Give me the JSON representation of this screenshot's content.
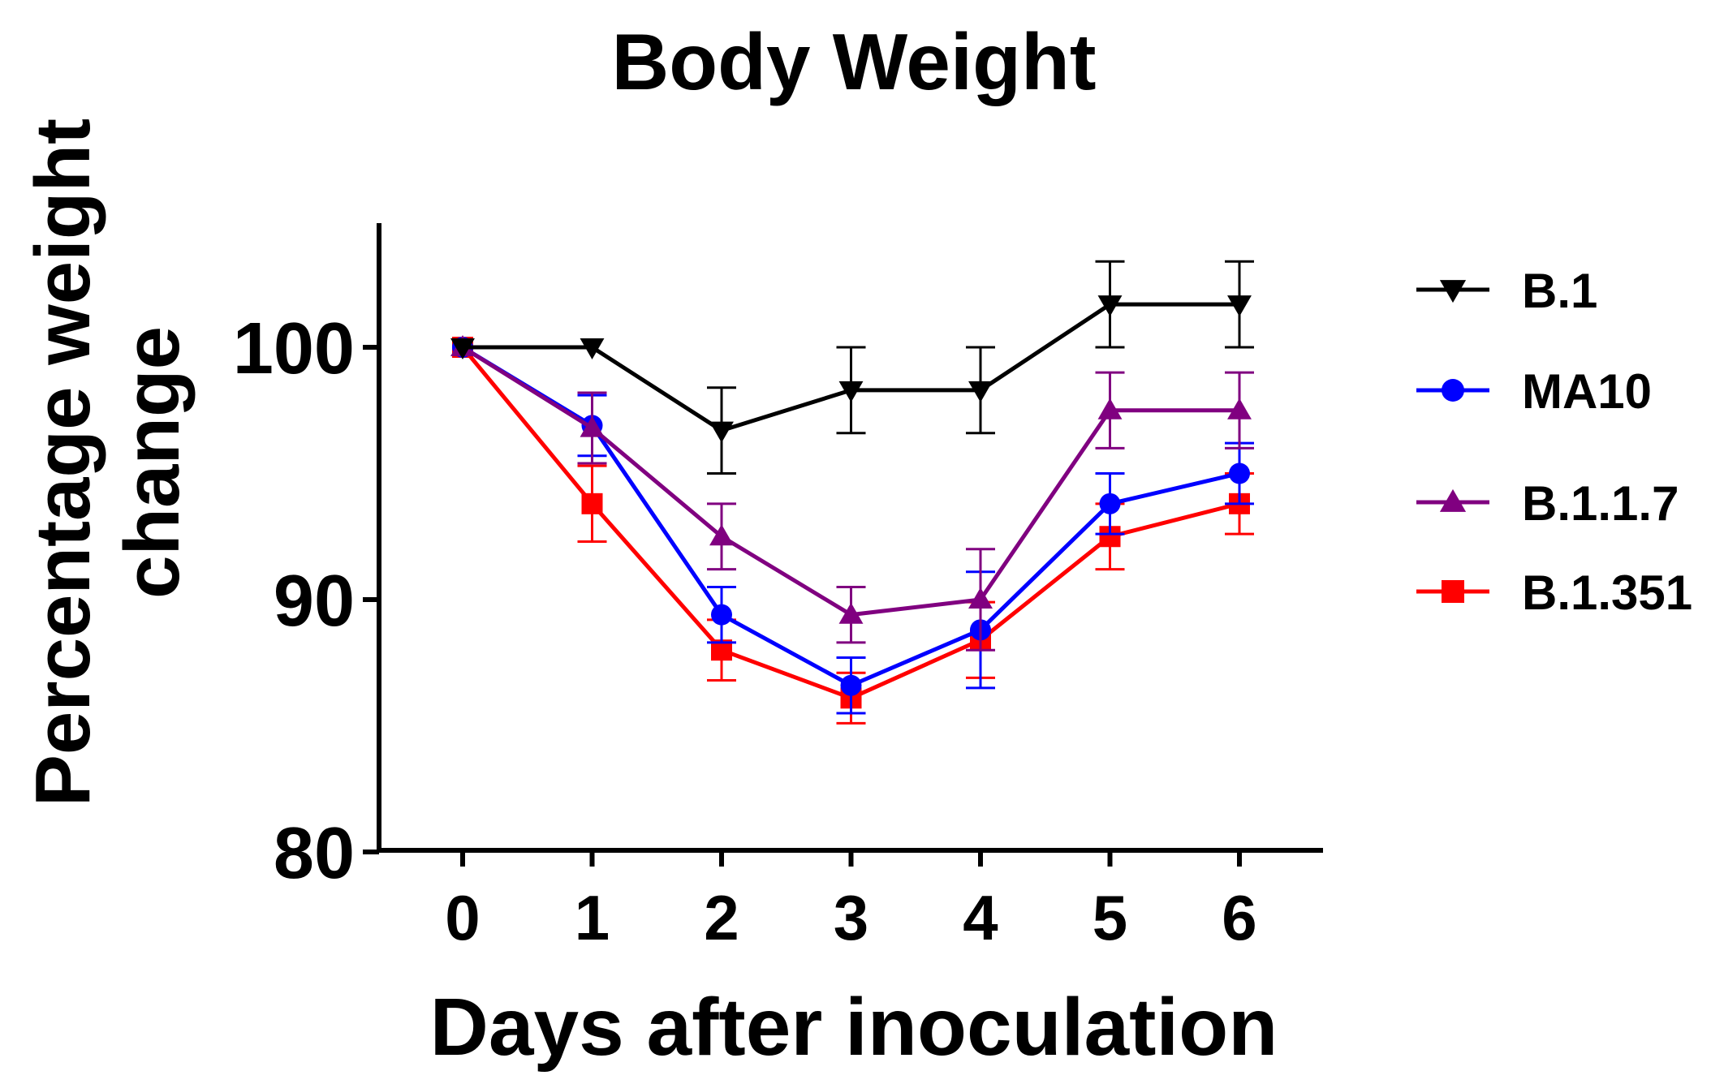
{
  "chart_data": {
    "type": "line",
    "title": "Body Weight",
    "xlabel": "Days after inoculation",
    "ylabel_lines": [
      "Percentage weight",
      "change"
    ],
    "x": [
      0,
      1,
      2,
      3,
      4,
      5,
      6
    ],
    "x_ticks": [
      "0",
      "1",
      "2",
      "3",
      "4",
      "5",
      "6"
    ],
    "y_ticks": [
      "80",
      "90",
      "100"
    ],
    "y_tick_values": [
      80,
      90,
      100
    ],
    "ylim": [
      80,
      105
    ],
    "legend_position": "right",
    "series": [
      {
        "name": "B.1",
        "color": "#000000",
        "marker": "triangle-down",
        "values": [
          100,
          100,
          96.7,
          98.3,
          98.3,
          101.7,
          101.7
        ],
        "errors": [
          0,
          0,
          1.7,
          1.7,
          1.7,
          1.7,
          1.7
        ]
      },
      {
        "name": "MA10",
        "color": "#0000ff",
        "marker": "circle",
        "values": [
          100,
          96.9,
          89.4,
          86.6,
          88.8,
          93.8,
          95.0
        ],
        "errors": [
          0,
          1.2,
          1.1,
          1.1,
          2.3,
          1.2,
          1.2
        ]
      },
      {
        "name": "B.1.1.7",
        "color": "#800080",
        "marker": "triangle-up",
        "values": [
          100,
          96.8,
          92.5,
          89.4,
          90.0,
          97.5,
          97.5
        ],
        "errors": [
          0,
          1.4,
          1.3,
          1.1,
          2.0,
          1.5,
          1.5
        ]
      },
      {
        "name": "B.1.351",
        "color": "#ff0000",
        "marker": "square",
        "values": [
          100,
          93.8,
          88.0,
          86.1,
          88.4,
          92.5,
          93.8
        ],
        "errors": [
          0,
          1.5,
          1.2,
          1.0,
          1.5,
          1.3,
          1.2
        ]
      }
    ]
  }
}
